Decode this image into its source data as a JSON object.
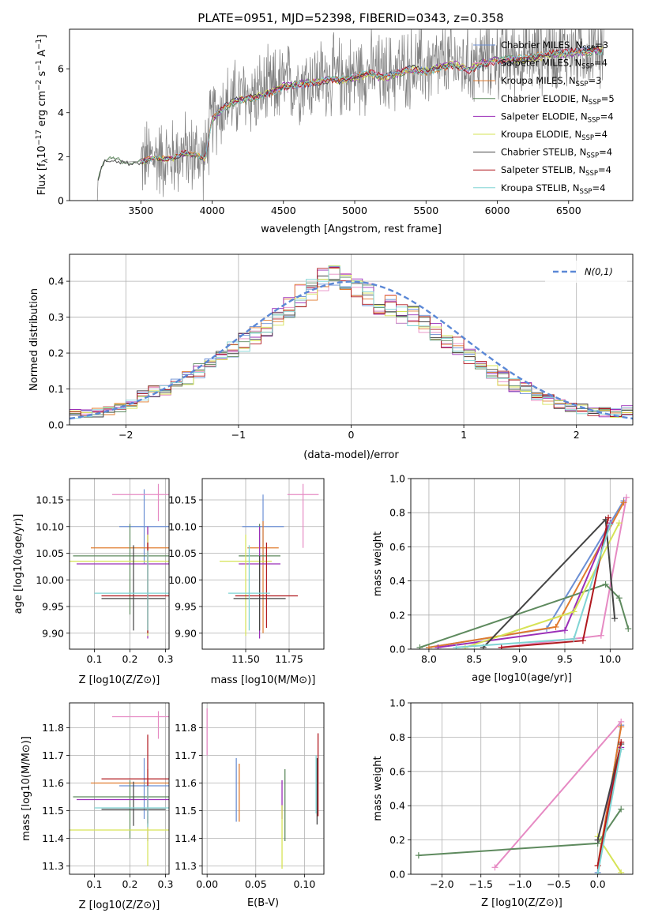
{
  "figure": {
    "title": "PLATE=0951, MJD=52398, FIBERID=0343, z=0.358"
  },
  "series": [
    {
      "name": "Chabrier MILES, N_SSP=3",
      "name_main": "Chabrier MILES, N",
      "name_sub": "SSP",
      "name_tail": "=3",
      "color": "#6b8fd4"
    },
    {
      "name": "Salpeter MILES, N_SSP=4",
      "name_main": "Salpeter MILES, N",
      "name_sub": "SSP",
      "name_tail": "=4",
      "color": "#e68ac3"
    },
    {
      "name": "Kroupa MILES, N_SSP=3",
      "name_main": "Kroupa MILES, N",
      "name_sub": "SSP",
      "name_tail": "=3",
      "color": "#e07b2e"
    },
    {
      "name": "Chabrier ELODIE, N_SSP=5",
      "name_main": "Chabrier ELODIE, N",
      "name_sub": "SSP",
      "name_tail": "=5",
      "color": "#5e8a5e"
    },
    {
      "name": "Salpeter ELODIE, N_SSP=4",
      "name_main": "Salpeter ELODIE, N",
      "name_sub": "SSP",
      "name_tail": "=4",
      "color": "#9b2fb8"
    },
    {
      "name": "Kroupa ELODIE, N_SSP=4",
      "name_main": "Kroupa ELODIE, N",
      "name_sub": "SSP",
      "name_tail": "=4",
      "color": "#d6e356"
    },
    {
      "name": "Chabrier STELIB, N_SSP=4",
      "name_main": "Chabrier STELIB, N",
      "name_sub": "SSP",
      "name_tail": "=4",
      "color": "#444444"
    },
    {
      "name": "Salpeter STELIB, N_SSP=4",
      "name_main": "Salpeter STELIB, N",
      "name_sub": "SSP",
      "name_tail": "=4",
      "color": "#b0181e"
    },
    {
      "name": "Kroupa STELIB, N_SSP=4",
      "name_main": "Kroupa STELIB, N",
      "name_sub": "SSP",
      "name_tail": "=4",
      "color": "#7fd4d4"
    }
  ],
  "chart_data": [
    {
      "id": "spectrum",
      "type": "line",
      "xlabel": "wavelength [Angstrom, rest frame]",
      "ylabel_main": "Flux [f",
      "ylabel_sub": "λ",
      "ylabel_mid": "10",
      "ylabel_sup1": "−17",
      "ylabel_rest": " erg cm",
      "ylabel_sup2": "−2",
      "ylabel_rest2": " s",
      "ylabel_sup3": "−1",
      "ylabel_rest3": " A",
      "ylabel_sup4": "−1",
      "ylabel_end": "]",
      "xlim": [
        3000,
        6950
      ],
      "ylim": [
        0,
        7.8
      ],
      "xticks": [
        3500,
        4000,
        4500,
        5000,
        5500,
        6000,
        6500
      ],
      "yticks": [
        0,
        2,
        4,
        6
      ],
      "legend_position": "upper-right",
      "grid": false,
      "data_color": "#808080",
      "continuum": {
        "x": [
          3200,
          3240,
          3300,
          3400,
          3500,
          3600,
          3700,
          3800,
          3900,
          3950,
          4000,
          4100,
          4200,
          4300,
          4400,
          4500,
          4600,
          4700,
          4800,
          4900,
          5000,
          5100,
          5200,
          5300,
          5400,
          5500,
          5600,
          5700,
          5800,
          5900,
          6000,
          6200,
          6400,
          6600,
          6750
        ],
        "y": [
          1.0,
          1.8,
          1.95,
          1.75,
          1.8,
          2.0,
          1.9,
          2.2,
          2.1,
          1.9,
          3.8,
          4.4,
          4.7,
          4.8,
          5.0,
          5.3,
          5.4,
          5.5,
          5.6,
          5.6,
          5.7,
          5.9,
          5.7,
          5.9,
          6.1,
          6.0,
          6.2,
          6.3,
          6.1,
          6.4,
          6.5,
          6.6,
          6.8,
          6.9,
          7.0
        ]
      },
      "noise_start": 3500,
      "noise_amplitude": 1.5
    },
    {
      "id": "residuals",
      "type": "line",
      "xlabel": "(data-model)/error",
      "ylabel": "Normed distribution",
      "xlim": [
        -2.5,
        2.5
      ],
      "ylim": [
        0,
        0.475
      ],
      "xticks": [
        -2,
        -1,
        0,
        1,
        2
      ],
      "yticks": [
        0.0,
        0.1,
        0.2,
        0.3,
        0.4
      ],
      "grid": true,
      "legend_position": "upper-right",
      "reference_curve_label": "N(0,1)",
      "bin_width": 0.1,
      "histogram_seed_values": [
        0.03,
        0.03,
        0.035,
        0.04,
        0.05,
        0.06,
        0.08,
        0.095,
        0.1,
        0.11,
        0.13,
        0.15,
        0.17,
        0.19,
        0.21,
        0.23,
        0.25,
        0.27,
        0.3,
        0.33,
        0.36,
        0.38,
        0.4,
        0.41,
        0.4,
        0.38,
        0.36,
        0.34,
        0.33,
        0.31,
        0.3,
        0.28,
        0.26,
        0.24,
        0.22,
        0.19,
        0.17,
        0.15,
        0.13,
        0.11,
        0.1,
        0.08,
        0.07,
        0.06,
        0.05,
        0.045,
        0.04,
        0.035,
        0.035,
        0.04
      ]
    },
    {
      "id": "age_vs_Z",
      "type": "scatter",
      "xlabel": "Z [log10(Z/Z⊙)]",
      "ylabel": "age  [log10(age/yr)]",
      "xlim": [
        0.03,
        0.31
      ],
      "ylim": [
        9.87,
        10.19
      ],
      "xticks": [
        0.1,
        0.2,
        0.3
      ],
      "yticks": [
        9.9,
        9.95,
        10.0,
        10.05,
        10.1,
        10.15
      ],
      "grid": true,
      "crosses": [
        {
          "s": 0,
          "x": 0.24,
          "y": 10.1,
          "xerr": 0.07,
          "yerr_lo": 0.07,
          "yerr_hi": 0.07
        },
        {
          "s": 1,
          "x": 0.28,
          "y": 10.16,
          "xerr": 0.13,
          "yerr_lo": 0.05,
          "yerr_hi": 0.02
        },
        {
          "s": 2,
          "x": 0.25,
          "y": 10.06,
          "xerr": 0.16,
          "yerr_lo": 0.16,
          "yerr_hi": 0.04
        },
        {
          "s": 3,
          "x": 0.2,
          "y": 10.045,
          "xerr": 0.16,
          "yerr_lo": 0.11,
          "yerr_hi": 0.06
        },
        {
          "s": 4,
          "x": 0.25,
          "y": 10.03,
          "xerr": 0.2,
          "yerr_lo": 0.14,
          "yerr_hi": 0.07
        },
        {
          "s": 5,
          "x": 0.25,
          "y": 10.035,
          "xerr": 0.25,
          "yerr_lo": 0.14,
          "yerr_hi": 0.05
        },
        {
          "s": 6,
          "x": 0.21,
          "y": 9.965,
          "xerr": 0.09,
          "yerr_lo": 0.06,
          "yerr_hi": 0.1
        },
        {
          "s": 7,
          "x": 0.25,
          "y": 9.97,
          "xerr": 0.13,
          "yerr_lo": 0.07,
          "yerr_hi": 0.1
        },
        {
          "s": 8,
          "x": 0.25,
          "y": 9.975,
          "xerr": 0.15,
          "yerr_lo": 0.07,
          "yerr_hi": 0.08
        }
      ]
    },
    {
      "id": "age_vs_mass",
      "type": "scatter",
      "xlabel": "mass [log10(M/M⊙)]",
      "ylabel": "",
      "xlim": [
        11.25,
        11.95
      ],
      "ylim": [
        9.87,
        10.19
      ],
      "xticks": [
        11.5,
        11.75
      ],
      "yticks": [
        9.9,
        9.95,
        10.0,
        10.05,
        10.1,
        10.15
      ],
      "grid": true,
      "crosses": [
        {
          "s": 0,
          "x": 11.6,
          "y": 10.1,
          "xerr": 0.12,
          "yerr_lo": 0.07,
          "yerr_hi": 0.06
        },
        {
          "s": 1,
          "x": 11.83,
          "y": 10.16,
          "xerr": 0.09,
          "yerr_lo": 0.1,
          "yerr_hi": 0.02
        },
        {
          "s": 2,
          "x": 11.6,
          "y": 10.06,
          "xerr": 0.09,
          "yerr_lo": 0.16,
          "yerr_hi": 0.05
        },
        {
          "s": 3,
          "x": 11.58,
          "y": 10.045,
          "xerr": 0.12,
          "yerr_lo": 0.08,
          "yerr_hi": 0.06
        },
        {
          "s": 4,
          "x": 11.58,
          "y": 10.03,
          "xerr": 0.12,
          "yerr_lo": 0.14,
          "yerr_hi": 0.07
        },
        {
          "s": 5,
          "x": 11.5,
          "y": 10.035,
          "xerr": 0.15,
          "yerr_lo": 0.14,
          "yerr_hi": 0.05
        },
        {
          "s": 6,
          "x": 11.58,
          "y": 9.965,
          "xerr": 0.15,
          "yerr_lo": 0.06,
          "yerr_hi": 0.08
        },
        {
          "s": 7,
          "x": 11.62,
          "y": 9.97,
          "xerr": 0.18,
          "yerr_lo": 0.06,
          "yerr_hi": 0.1
        },
        {
          "s": 8,
          "x": 11.52,
          "y": 9.975,
          "xerr": 0.12,
          "yerr_lo": 0.07,
          "yerr_hi": 0.09
        }
      ]
    },
    {
      "id": "weight_vs_age",
      "type": "line",
      "xlabel": "age  [log10(age/yr)]",
      "ylabel": "mass weight",
      "xlim": [
        7.8,
        10.25
      ],
      "ylim": [
        0,
        1.0
      ],
      "xticks": [
        8.0,
        8.5,
        9.0,
        9.5,
        10.0
      ],
      "yticks": [
        0.0,
        0.2,
        0.4,
        0.6,
        0.8,
        1.0
      ],
      "grid": true,
      "series_points": [
        {
          "s": 0,
          "x": [
            8.0,
            9.3,
            10.15
          ],
          "y": [
            0.01,
            0.12,
            0.87
          ]
        },
        {
          "s": 1,
          "x": [
            8.8,
            9.9,
            10.18
          ],
          "y": [
            0.01,
            0.08,
            0.89
          ]
        },
        {
          "s": 2,
          "x": [
            8.0,
            9.4,
            10.15
          ],
          "y": [
            0.01,
            0.13,
            0.86
          ]
        },
        {
          "s": 3,
          "x": [
            7.9,
            9.95,
            10.1,
            10.2
          ],
          "y": [
            0.01,
            0.38,
            0.3,
            0.12
          ]
        },
        {
          "s": 4,
          "x": [
            8.1,
            9.5,
            10.0
          ],
          "y": [
            0.01,
            0.11,
            0.74
          ]
        },
        {
          "s": 5,
          "x": [
            8.4,
            9.6,
            10.1
          ],
          "y": [
            0.01,
            0.22,
            0.74
          ]
        },
        {
          "s": 6,
          "x": [
            8.6,
            9.95,
            10.05
          ],
          "y": [
            0.01,
            0.76,
            0.18
          ]
        },
        {
          "s": 7,
          "x": [
            8.8,
            9.7,
            9.98
          ],
          "y": [
            0.01,
            0.05,
            0.77
          ]
        },
        {
          "s": 8,
          "x": [
            8.3,
            9.6,
            10.0
          ],
          "y": [
            0.01,
            0.06,
            0.73
          ]
        }
      ]
    },
    {
      "id": "mass_vs_Z",
      "type": "scatter",
      "xlabel": "Z [log10(Z/Z⊙)]",
      "ylabel": "mass [log10(M/M⊙)]",
      "xlim": [
        0.03,
        0.31
      ],
      "ylim": [
        11.27,
        11.89
      ],
      "xticks": [
        0.1,
        0.2,
        0.3
      ],
      "yticks": [
        11.3,
        11.4,
        11.5,
        11.6,
        11.7,
        11.8
      ],
      "grid": true,
      "crosses": [
        {
          "s": 0,
          "x": 0.24,
          "y": 11.59,
          "xerr": 0.07,
          "yerr_lo": 0.12,
          "yerr_hi": 0.1
        },
        {
          "s": 1,
          "x": 0.28,
          "y": 11.84,
          "xerr": 0.13,
          "yerr_lo": 0.08,
          "yerr_hi": 0.02
        },
        {
          "s": 2,
          "x": 0.25,
          "y": 11.6,
          "xerr": 0.16,
          "yerr_lo": 0.15,
          "yerr_hi": 0.05
        },
        {
          "s": 3,
          "x": 0.2,
          "y": 11.55,
          "xerr": 0.16,
          "yerr_lo": 0.15,
          "yerr_hi": 0.06
        },
        {
          "s": 4,
          "x": 0.25,
          "y": 11.54,
          "xerr": 0.2,
          "yerr_lo": 0.15,
          "yerr_hi": 0.07
        },
        {
          "s": 5,
          "x": 0.25,
          "y": 11.43,
          "xerr": 0.25,
          "yerr_lo": 0.13,
          "yerr_hi": 0.05
        },
        {
          "s": 6,
          "x": 0.21,
          "y": 11.505,
          "xerr": 0.09,
          "yerr_lo": 0.06,
          "yerr_hi": 0.1
        },
        {
          "s": 7,
          "x": 0.25,
          "y": 11.615,
          "xerr": 0.13,
          "yerr_lo": 0.16,
          "yerr_hi": 0.16
        },
        {
          "s": 8,
          "x": 0.25,
          "y": 11.51,
          "xerr": 0.15,
          "yerr_lo": 0.07,
          "yerr_hi": 0.08
        }
      ]
    },
    {
      "id": "mass_vs_EBV",
      "type": "scatter",
      "xlabel": "E(B-V)",
      "ylabel": "",
      "xlim": [
        -0.005,
        0.12
      ],
      "ylim": [
        11.27,
        11.89
      ],
      "xticks": [
        0.0,
        0.05,
        0.1
      ],
      "yticks": [
        11.3,
        11.4,
        11.5,
        11.6,
        11.7,
        11.8
      ],
      "grid": true,
      "vbars": [
        {
          "s": 0,
          "x": 0.03,
          "lo": 11.46,
          "hi": 11.69
        },
        {
          "s": 1,
          "x": 0.0,
          "lo": 11.7,
          "hi": 11.87
        },
        {
          "s": 2,
          "x": 0.033,
          "lo": 11.46,
          "hi": 11.67
        },
        {
          "s": 3,
          "x": 0.08,
          "lo": 11.39,
          "hi": 11.65
        },
        {
          "s": 4,
          "x": 0.077,
          "lo": 11.47,
          "hi": 11.61
        },
        {
          "s": 5,
          "x": 0.077,
          "lo": 11.29,
          "hi": 11.52
        },
        {
          "s": 6,
          "x": 0.113,
          "lo": 11.45,
          "hi": 11.69
        },
        {
          "s": 7,
          "x": 0.114,
          "lo": 11.48,
          "hi": 11.78
        },
        {
          "s": 8,
          "x": 0.112,
          "lo": 11.49,
          "hi": 11.7
        }
      ]
    },
    {
      "id": "weight_vs_Z",
      "type": "line",
      "xlabel": "Z [log10(Z/Z⊙)]",
      "ylabel": "mass weight",
      "xlim": [
        -2.4,
        0.45
      ],
      "ylim": [
        0,
        1.0
      ],
      "xticks": [
        -2.0,
        -1.5,
        -1.0,
        -0.5,
        0.0
      ],
      "yticks": [
        0.0,
        0.2,
        0.4,
        0.6,
        0.8,
        1.0
      ],
      "grid": true,
      "series_points": [
        {
          "s": 0,
          "x": [
            0.0,
            0.3
          ],
          "y": [
            0.01,
            0.87
          ]
        },
        {
          "s": 1,
          "x": [
            -1.32,
            0.3
          ],
          "y": [
            0.04,
            0.89
          ]
        },
        {
          "s": 2,
          "x": [
            0.0,
            0.3
          ],
          "y": [
            0.05,
            0.86
          ]
        },
        {
          "s": 3,
          "x": [
            -2.3,
            0.0,
            0.3
          ],
          "y": [
            0.11,
            0.18,
            0.38
          ]
        },
        {
          "s": 4,
          "x": [
            0.0,
            0.3
          ],
          "y": [
            0.2,
            0.74
          ]
        },
        {
          "s": 5,
          "x": [
            0.0,
            0.3
          ],
          "y": [
            0.22,
            0.01
          ]
        },
        {
          "s": 6,
          "x": [
            0.0,
            0.3
          ],
          "y": [
            0.2,
            0.76
          ]
        },
        {
          "s": 7,
          "x": [
            0.0,
            0.3
          ],
          "y": [
            0.05,
            0.77
          ]
        },
        {
          "s": 8,
          "x": [
            0.0,
            0.3
          ],
          "y": [
            0.0,
            0.73
          ]
        }
      ]
    }
  ]
}
